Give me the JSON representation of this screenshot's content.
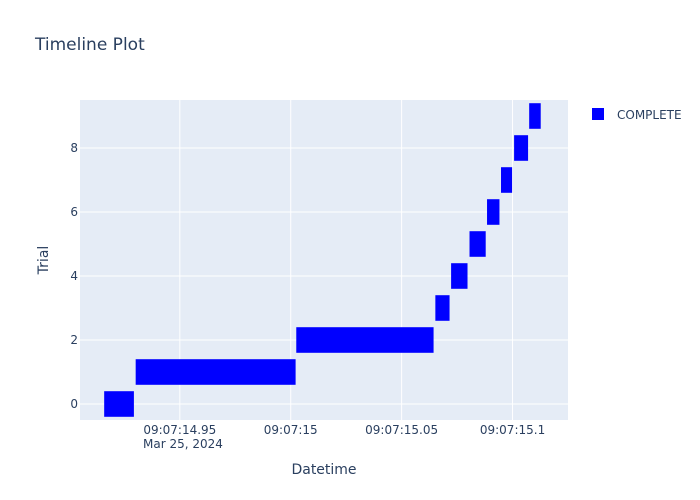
{
  "chart_data": {
    "type": "timeline",
    "title": "Timeline Plot",
    "xlabel": "Datetime",
    "ylabel": "Trial",
    "x_date": "Mar 25, 2024",
    "x_time_prefix": "09:07:",
    "xlim": [
      14.905,
      15.125
    ],
    "ylim": [
      -0.5,
      9.5
    ],
    "x_ticks": [
      {
        "value": 14.95,
        "label": "09:07:14.95"
      },
      {
        "value": 15.0,
        "label": "09:07:15"
      },
      {
        "value": 15.05,
        "label": "09:07:15.05"
      },
      {
        "value": 15.1,
        "label": "09:07:15.1"
      }
    ],
    "y_ticks": [
      0,
      2,
      4,
      6,
      8
    ],
    "series": [
      {
        "name": "COMPLETE",
        "color": "#0000ff",
        "bars": [
          {
            "trial": 0,
            "start": 14.9159,
            "end": 14.9293
          },
          {
            "trial": 1,
            "start": 14.9301,
            "end": 15.0022
          },
          {
            "trial": 2,
            "start": 15.0025,
            "end": 15.0644
          },
          {
            "trial": 3,
            "start": 15.0652,
            "end": 15.0716
          },
          {
            "trial": 4,
            "start": 15.0723,
            "end": 15.0797
          },
          {
            "trial": 5,
            "start": 15.0806,
            "end": 15.0879
          },
          {
            "trial": 6,
            "start": 15.0885,
            "end": 15.0941
          },
          {
            "trial": 7,
            "start": 15.0948,
            "end": 15.0998
          },
          {
            "trial": 8,
            "start": 15.1007,
            "end": 15.107
          },
          {
            "trial": 9,
            "start": 15.1075,
            "end": 15.1127
          }
        ]
      }
    ],
    "legend_position": "top-right",
    "grid": true,
    "plot_bgcolor": "#e5ecf6",
    "grid_color": "#ffffff"
  }
}
